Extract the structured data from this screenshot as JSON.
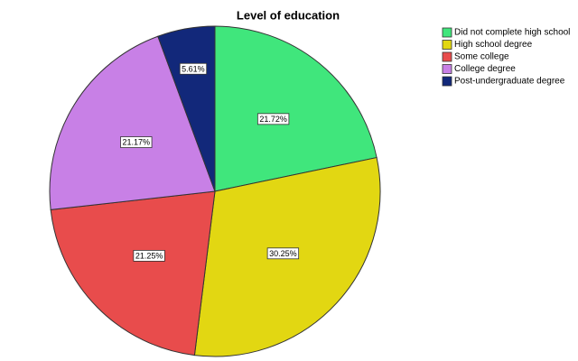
{
  "chart_data": {
    "type": "pie",
    "title": "Level of education",
    "categories": [
      "Did not complete high school",
      "High school degree",
      "Some college",
      "College degree",
      "Post-undergraduate degree"
    ],
    "values": [
      21.72,
      30.25,
      21.25,
      21.17,
      5.61
    ],
    "value_labels": [
      "21.72%",
      "30.25%",
      "21.25%",
      "21.17%",
      "5.61%"
    ],
    "colors": [
      "#40e67c",
      "#e2d712",
      "#e84c4c",
      "#c880e6",
      "#12287a"
    ],
    "legend": "top-right"
  }
}
